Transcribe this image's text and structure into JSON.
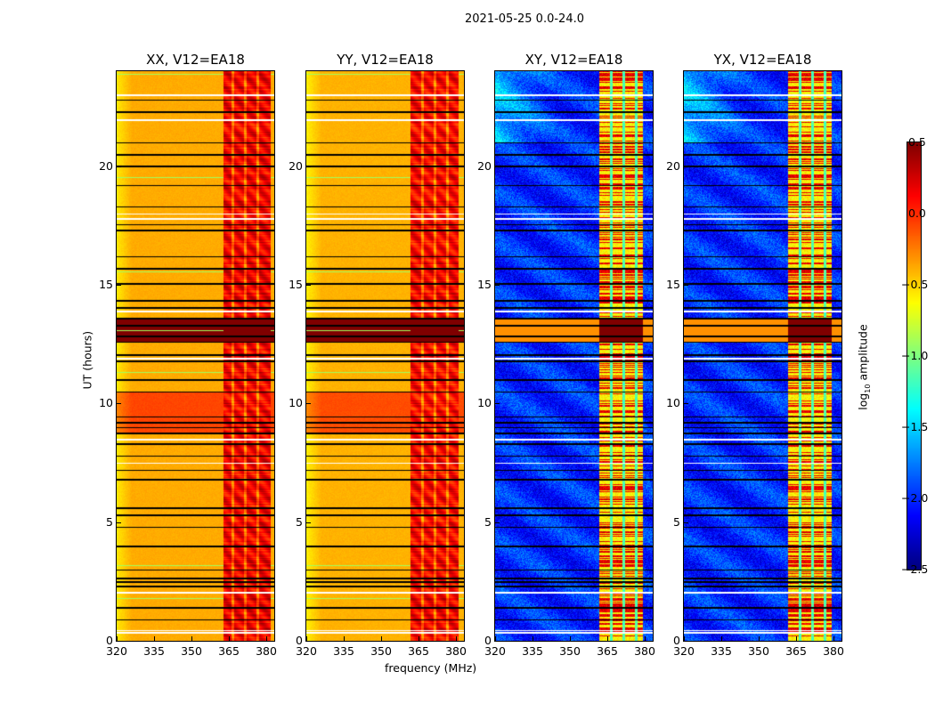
{
  "chart_data": {
    "type": "heatmap",
    "title": "2021-05-25 0.0-24.0",
    "xlabel": "frequency (MHz)",
    "ylabel": "UT (hours)",
    "xlim": [
      320,
      383.2
    ],
    "ylim": [
      0,
      24
    ],
    "xticks": [
      "320",
      "335",
      "350",
      "365",
      "380"
    ],
    "yticks": [
      "0",
      "5",
      "10",
      "15",
      "20"
    ],
    "xtick_values": [
      320,
      335,
      350,
      365,
      380
    ],
    "ytick_values": [
      0,
      5,
      10,
      15,
      20
    ],
    "colormap": "jet",
    "colorbar": {
      "label_prefix": "log",
      "label_sub": "10",
      "label_suffix": " amplitude",
      "range": [
        -2.5,
        0.5
      ],
      "ticks": [
        "0.5",
        "0.0",
        "−0.5",
        "−1.0",
        "−1.5",
        "−2.0",
        "−2.5"
      ],
      "tick_values": [
        0.5,
        0.0,
        -0.5,
        -1.0,
        -1.5,
        -2.0,
        -2.5
      ]
    },
    "panels": [
      {
        "title": "XX, V12=EA18",
        "kind": "parallel",
        "base": -0.38,
        "band": [
          362.5,
          381.5
        ],
        "band_level": 0.15
      },
      {
        "title": "YY, V12=EA18",
        "kind": "parallel",
        "base": -0.4,
        "band": [
          361.5,
          381
        ],
        "band_level": 0.12
      },
      {
        "title": "XY, V12=EA18",
        "kind": "cross",
        "base": -2.0,
        "band": [
          361.5,
          379
        ],
        "band_level": -0.6
      },
      {
        "title": "YX, V12=EA18",
        "kind": "cross",
        "base": -2.0,
        "band": [
          361.5,
          379
        ],
        "band_level": -0.6
      }
    ],
    "flagged_hours_black": [
      0.9,
      1.4,
      2.3,
      2.5,
      2.65,
      3.0,
      4.0,
      4.8,
      5.3,
      5.6,
      6.8,
      7.2,
      7.8,
      8.3,
      8.75,
      9.0,
      9.2,
      9.45,
      10.5,
      11.0,
      11.8,
      12.05,
      12.6,
      12.85,
      13.3,
      13.6,
      14.05,
      14.35,
      15.05,
      15.7,
      16.2,
      17.3,
      17.55,
      18.3,
      19.2,
      20.0,
      20.5,
      21.0,
      22.3,
      22.8
    ],
    "flagged_hours_white": [
      0.35,
      0.45,
      2.05,
      7.5,
      8.5,
      11.9,
      13.9,
      17.8,
      18.0,
      21.95,
      23.0
    ],
    "elevated_hours": [
      8.8,
      10.5
    ],
    "saturated_hours": [
      12.6,
      13.6
    ]
  }
}
